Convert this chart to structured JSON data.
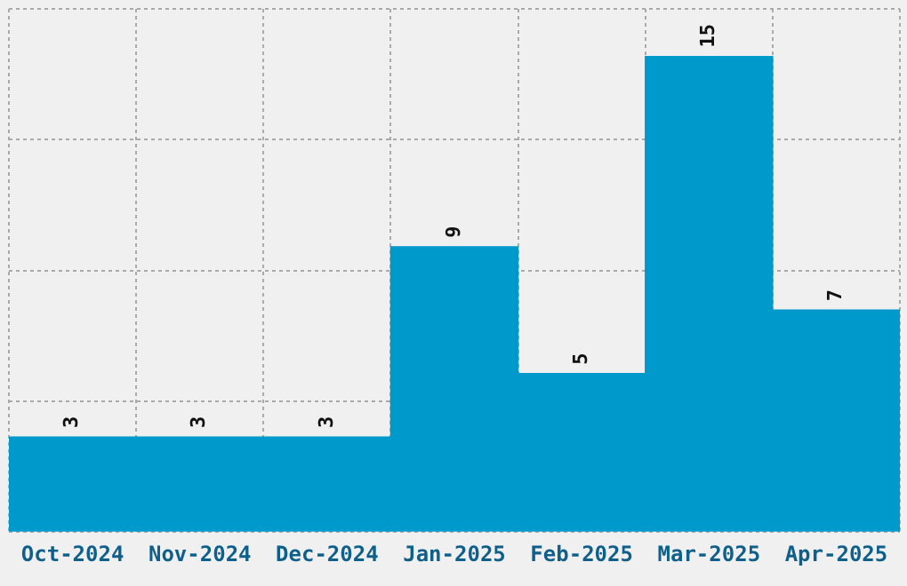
{
  "chart_data": {
    "type": "bar",
    "categories": [
      "Oct-2024",
      "Nov-2024",
      "Dec-2024",
      "Jan-2025",
      "Feb-2025",
      "Mar-2025",
      "Apr-2025"
    ],
    "values": [
      3,
      3,
      3,
      9,
      5,
      15,
      7
    ],
    "color": "#0099cc",
    "ylim": [
      0,
      16.5
    ],
    "yticks": [
      {
        "value": 0,
        "label": null
      },
      {
        "value": 4.125,
        "label": null
      },
      {
        "value": 8.25,
        "label": null
      },
      {
        "value": 12.375,
        "label": null
      },
      {
        "value": 16.5,
        "label": null
      }
    ],
    "grid": true,
    "data_labels": true,
    "tick_labels": "x"
  }
}
